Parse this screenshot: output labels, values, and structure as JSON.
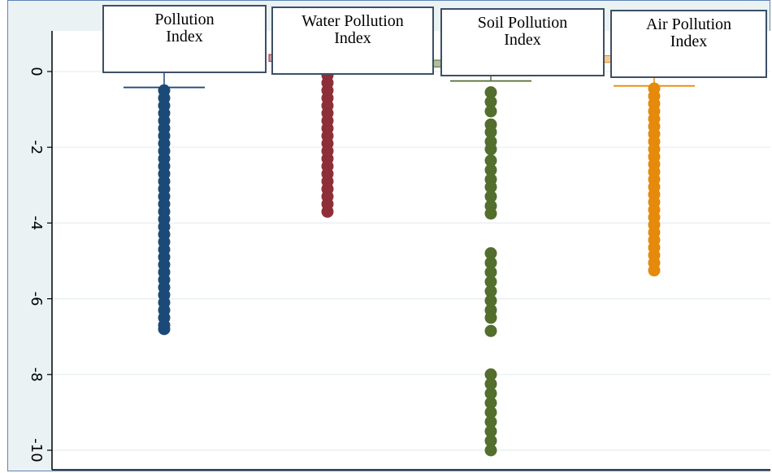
{
  "chart_data": {
    "type": "scatter",
    "subtype": "strip/box plot (dot columns with whisker caps)",
    "ylim": [
      -10.6,
      1.0
    ],
    "yticks": [
      0,
      -2,
      -4,
      -6,
      -8,
      -10
    ],
    "ytick_labels": [
      "0",
      "-2",
      "-4",
      "-6",
      "-8",
      "-10"
    ],
    "grid": true,
    "series": [
      {
        "name": "Pollution Index",
        "color": "#1c4a78",
        "whisker_cap": -0.42,
        "box_top": 0.4,
        "points": [
          -0.5,
          -0.7,
          -0.9,
          -1.1,
          -1.3,
          -1.5,
          -1.7,
          -1.9,
          -2.1,
          -2.3,
          -2.5,
          -2.7,
          -2.9,
          -3.1,
          -3.3,
          -3.5,
          -3.7,
          -3.9,
          -4.1,
          -4.3,
          -4.5,
          -4.7,
          -4.9,
          -5.1,
          -5.3,
          -5.5,
          -5.7,
          -5.9,
          -6.1,
          -6.3,
          -6.5,
          -6.7,
          -6.8
        ]
      },
      {
        "name": "Water Pollution Index",
        "color": "#8e2f38",
        "whisker_cap": 0.0,
        "box_top": 0.45,
        "points": [
          -0.1,
          -0.3,
          -0.5,
          -0.7,
          -0.9,
          -1.1,
          -1.3,
          -1.5,
          -1.7,
          -1.9,
          -2.1,
          -2.3,
          -2.5,
          -2.7,
          -2.9,
          -3.1,
          -3.3,
          -3.5,
          -3.7
        ]
      },
      {
        "name": "Soil Pollution Index",
        "color": "#536e2d",
        "whisker_cap": -0.25,
        "box_top": 0.3,
        "points": [
          -0.55,
          -0.8,
          -1.05,
          -1.4,
          -1.6,
          -1.85,
          -2.05,
          -2.35,
          -2.6,
          -2.85,
          -3.05,
          -3.3,
          -3.55,
          -3.75,
          -4.8,
          -5.05,
          -5.3,
          -5.55,
          -5.8,
          -6.05,
          -6.3,
          -6.5,
          -6.85,
          -8.0,
          -8.25,
          -8.5,
          -8.75,
          -9.0,
          -9.25,
          -9.5,
          -9.75,
          -10.0
        ]
      },
      {
        "name": "Air Pollution Index",
        "color": "#e68a0c",
        "whisker_cap": -0.38,
        "box_top": 0.42,
        "points": [
          -0.45,
          -0.65,
          -0.85,
          -1.05,
          -1.25,
          -1.45,
          -1.65,
          -1.85,
          -2.05,
          -2.25,
          -2.45,
          -2.65,
          -2.85,
          -3.05,
          -3.25,
          -3.45,
          -3.65,
          -3.85,
          -4.05,
          -4.25,
          -4.45,
          -4.65,
          -4.85,
          -5.05,
          -5.25
        ]
      }
    ]
  },
  "legend": {
    "pollution": [
      "Pollution",
      "Index"
    ],
    "water": [
      "Water Pollution",
      "Index"
    ],
    "soil": [
      "Soil Pollution",
      "Index"
    ],
    "air": [
      "Air Pollution",
      "Index"
    ]
  }
}
